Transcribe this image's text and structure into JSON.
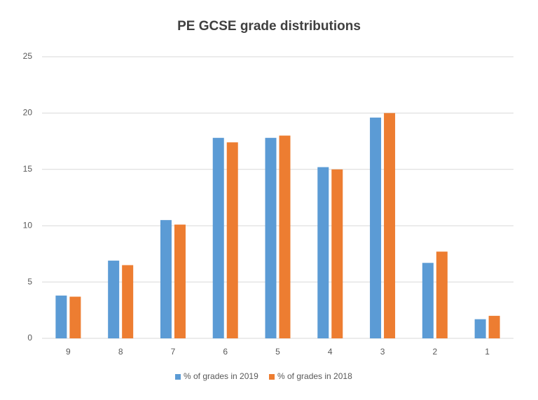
{
  "chart_data": {
    "type": "bar",
    "title": "PE GCSE grade distributions",
    "categories": [
      "9",
      "8",
      "7",
      "6",
      "5",
      "4",
      "3",
      "2",
      "1"
    ],
    "series": [
      {
        "name": "% of grades in 2019",
        "color": "#5b9bd5",
        "values": [
          3.8,
          6.9,
          10.5,
          17.8,
          17.8,
          15.2,
          19.6,
          6.7,
          1.7
        ]
      },
      {
        "name": "% of grades in 2018",
        "color": "#ed7d31",
        "values": [
          3.7,
          6.5,
          10.1,
          17.4,
          18.0,
          15.0,
          20.0,
          7.7,
          2.0
        ]
      }
    ],
    "ylim": [
      0,
      25
    ],
    "yticks": [
      0,
      5,
      10,
      15,
      20,
      25
    ],
    "grid": true,
    "legend": "bottom"
  }
}
